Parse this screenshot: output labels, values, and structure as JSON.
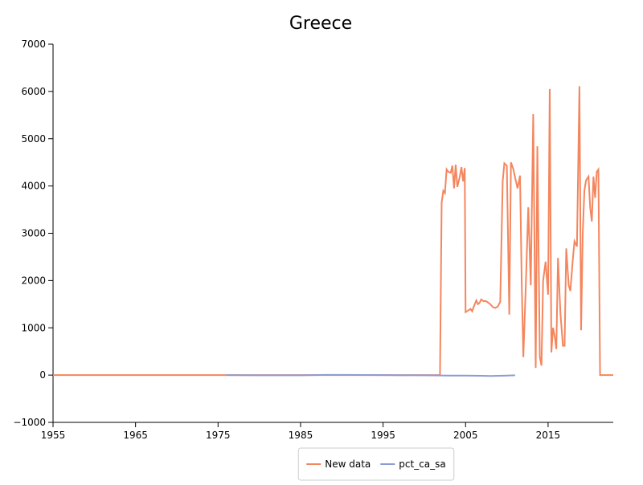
{
  "chart_data": {
    "type": "line",
    "title": "Greece",
    "xlim": [
      1955,
      2022.9
    ],
    "xticks": [
      1955,
      1965,
      1975,
      1985,
      1995,
      2005,
      2015
    ],
    "ylim": [
      -1000,
      7000
    ],
    "yticks": [
      {
        "value": -1000,
        "label": "−1000"
      },
      0,
      1000,
      2000,
      3000,
      4000,
      5000,
      6000,
      7000
    ],
    "legend": "bottom",
    "series": [
      {
        "name": "New data",
        "color": "#f4865e",
        "x": [
          1955,
          2001.9,
          2002.1,
          2002.3,
          2002.5,
          2002.7,
          2002.9,
          2003.2,
          2003.4,
          2003.6,
          2003.8,
          2004.0,
          2004.3,
          2004.5,
          2004.7,
          2004.9,
          2005.0,
          2005.6,
          2005.8,
          2006.0,
          2006.3,
          2006.5,
          2006.7,
          2006.9,
          2007.2,
          2007.4,
          2007.7,
          2008.0,
          2008.3,
          2008.6,
          2008.9,
          2009.2,
          2009.5,
          2009.7,
          2010.0,
          2010.3,
          2010.5,
          2010.8,
          2011.0,
          2011.3,
          2011.6,
          2011.8,
          2012.0,
          2012.3,
          2012.6,
          2012.9,
          2013.2,
          2013.5,
          2013.7,
          2014.0,
          2014.2,
          2014.4,
          2014.7,
          2015.0,
          2015.2,
          2015.4,
          2015.6,
          2015.8,
          2016.0,
          2016.2,
          2016.5,
          2016.8,
          2017.0,
          2017.2,
          2017.5,
          2017.7,
          2018.0,
          2018.2,
          2018.5,
          2018.8,
          2019.0,
          2019.2,
          2019.4,
          2019.6,
          2019.9,
          2020.1,
          2020.3,
          2020.5,
          2020.7,
          2020.9,
          2021.1,
          2021.3,
          2021.6,
          2021.8,
          2022.0,
          2022.2,
          2022.4,
          2022.9
        ],
        "values": [
          0,
          0,
          3650,
          3900,
          3850,
          4350,
          4300,
          4280,
          4430,
          3950,
          4450,
          3980,
          4200,
          4400,
          4100,
          4380,
          1330,
          1400,
          1350,
          1450,
          1580,
          1500,
          1530,
          1600,
          1560,
          1570,
          1540,
          1500,
          1440,
          1420,
          1450,
          1550,
          4100,
          4480,
          4430,
          1280,
          4500,
          4350,
          4180,
          3950,
          4220,
          2000,
          380,
          1900,
          3550,
          1900,
          5520,
          150,
          4840,
          380,
          200,
          2000,
          2400,
          1700,
          6050,
          480,
          1000,
          820,
          550,
          2480,
          1300,
          620,
          620,
          2680,
          1900,
          1780,
          2450,
          2830,
          2720,
          6110,
          950,
          3000,
          3900,
          4120,
          4200,
          3550,
          3250,
          4200,
          3750,
          4300,
          4350,
          0,
          0,
          0,
          0,
          0,
          0,
          0
        ]
      },
      {
        "name": "pct_ca_sa",
        "color": "#8d9bd4",
        "x": [
          1976,
          1980,
          1985,
          1988,
          1990,
          1995,
          2000,
          2003,
          2005,
          2007,
          2008,
          2009,
          2010,
          2011
        ],
        "values": [
          0,
          -5,
          -5,
          5,
          5,
          0,
          -5,
          -10,
          -10,
          -15,
          -20,
          -15,
          -10,
          -5
        ]
      }
    ]
  }
}
